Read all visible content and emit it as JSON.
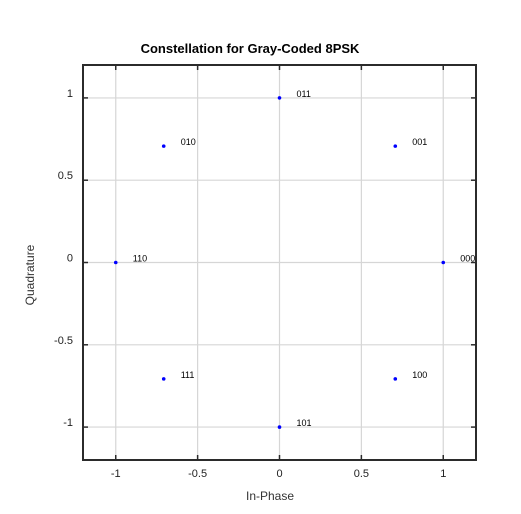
{
  "chart_data": {
    "type": "scatter",
    "title": "Constellation for Gray-Coded 8PSK",
    "xlabel": "In-Phase",
    "ylabel": "Quadrature",
    "xlim": [
      -1.2,
      1.2
    ],
    "ylim": [
      -1.2,
      1.2
    ],
    "xticks": [
      -1,
      -0.5,
      0,
      0.5,
      1
    ],
    "yticks": [
      -1,
      -0.5,
      0,
      0.5,
      1
    ],
    "xtick_labels": [
      "-1",
      "-0.5",
      "0",
      "0.5",
      "1"
    ],
    "ytick_labels": [
      "-1",
      "-0.5",
      "0",
      "0.5",
      "1"
    ],
    "grid": true,
    "marker_color": "#0000ff",
    "points": [
      {
        "x": 1,
        "y": 0,
        "label": "000"
      },
      {
        "x": 0.7071,
        "y": 0.7071,
        "label": "001"
      },
      {
        "x": 0,
        "y": 1,
        "label": "011"
      },
      {
        "x": -0.7071,
        "y": 0.7071,
        "label": "010"
      },
      {
        "x": -1,
        "y": 0,
        "label": "110"
      },
      {
        "x": -0.7071,
        "y": -0.7071,
        "label": "111"
      },
      {
        "x": 0,
        "y": -1,
        "label": "101"
      },
      {
        "x": 0.7071,
        "y": -0.7071,
        "label": "100"
      }
    ]
  }
}
